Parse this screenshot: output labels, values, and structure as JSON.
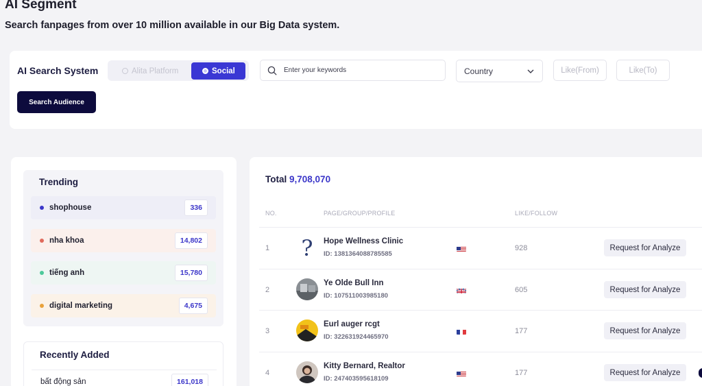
{
  "header": {
    "title": "AI Segment",
    "subtitle": "Search fanpages from over 10 million available in our Big Data system."
  },
  "search": {
    "label": "AI Search System",
    "platforms": [
      "Alita Platform",
      "Social"
    ],
    "selected_platform": "Social",
    "keyword_placeholder": "Enter your keywords",
    "country_label": "Country",
    "like_from_placeholder": "Like(From)",
    "like_to_placeholder": "Like(To)",
    "button_label": "Search Audience"
  },
  "trending": {
    "title": "Trending",
    "items": [
      {
        "label": "shophouse",
        "count": "336",
        "dot_color": "#3b36c9",
        "bg": "#eeeef7"
      },
      {
        "label": "nha khoa",
        "count": "14,802",
        "dot_color": "#e06a5c",
        "bg": "#fbf0ec"
      },
      {
        "label": "tiếng anh",
        "count": "15,780",
        "dot_color": "#4cc99a",
        "bg": "#eef6f3"
      },
      {
        "label": "digital marketing",
        "count": "4,675",
        "dot_color": "#e8a13a",
        "bg": "#fbf2e8"
      }
    ]
  },
  "recent": {
    "title": "Recently Added",
    "items": [
      {
        "label": "bất động sản",
        "count": "161,018"
      }
    ]
  },
  "results": {
    "total_label": "Total",
    "total_value": "9,708,070",
    "columns": {
      "no": "NO.",
      "page": "PAGE/GROUP/PROFILE",
      "likes": "LIKE/FOLLOW"
    },
    "button_label": "Request for Analyze",
    "rows": [
      {
        "no": "1",
        "name": "Hope Wellness Clinic",
        "id": "ID: 1381364088785585",
        "flag": "us",
        "likes": "928",
        "avatar": "question"
      },
      {
        "no": "2",
        "name": "Ye Olde Bull Inn",
        "id": "ID: 107511003985180",
        "flag": "gb",
        "likes": "605",
        "avatar": "photo-gray"
      },
      {
        "no": "3",
        "name": "Eurl auger rcgt",
        "id": "ID: 322631924465970",
        "flag": "fr",
        "likes": "177",
        "avatar": "photo-yellow"
      },
      {
        "no": "4",
        "name": "Kitty Bernard, Realtor",
        "id": "ID: 247403595618109",
        "flag": "us",
        "likes": "177",
        "avatar": "photo-person"
      }
    ]
  },
  "colors": {
    "accent": "#3a37d4",
    "primary_button": "#0d0b3d"
  }
}
